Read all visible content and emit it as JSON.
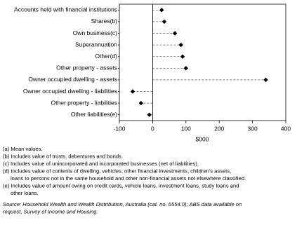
{
  "chart_data": {
    "type": "dot",
    "categories": [
      "Accounts held with financial institutions",
      "Shares(b)",
      "Own business(c)",
      "Superannuation",
      "Other(d)",
      "Other property - assets",
      "Owner occupied dwelling - assets",
      "Owner occupied dwelling - liabilities",
      "Other property - liabilities",
      "Other liabilities(e)"
    ],
    "values": [
      27,
      35,
      67,
      85,
      90,
      100,
      340,
      -60,
      -35,
      -10
    ],
    "color": "#000000",
    "xlim": [
      -100,
      400
    ],
    "xticks": [
      -100,
      0,
      100,
      200,
      300,
      400
    ],
    "xlabel": "$000",
    "notes": [
      "(a) Mean values.",
      "(b) Includes value of trusts, debentures and bonds.",
      "(c) Includes value of unincorporated and incorporated businesses (net of liabilities).",
      "(d) Includes value of contents of dwelling, vehicles, other financial investments, children's assets,",
      "loans to persons not in the same household and other non-financial assets not elsewhere classified.",
      "(e) Includes value of amount owing on credit cards, vehicle loans, investment loans, study loans and",
      "other loans."
    ],
    "source": [
      "Source: Household Wealth and Wealth Distribution, Australia (cat. no. 6554.0); ABS data available on",
      "request, Survey of Income and Housing."
    ]
  }
}
